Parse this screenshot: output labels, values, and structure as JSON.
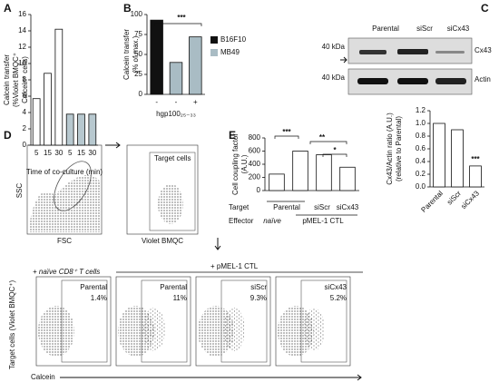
{
  "panel_labels": [
    "A",
    "B",
    "C",
    "D",
    "E"
  ],
  "chart_data": [
    {
      "type": "bar",
      "ylabel": [
        "Calcein transfer",
        "(%Violet BMQC⁺",
        "Calcein⁺ cells)"
      ],
      "xlabel": "Time of co-culture (min)",
      "categories": [
        "5",
        "15",
        "30",
        "5",
        "15",
        "30"
      ],
      "values": [
        5.7,
        8.8,
        14.2,
        3.8,
        3.8,
        3.8
      ],
      "colors": [
        "#ffffff",
        "#ffffff",
        "#ffffff",
        "#b7c8cf",
        "#b7c8cf",
        "#b7c8cf"
      ],
      "ylim": [
        0,
        16
      ],
      "yticks": [
        0,
        2,
        4,
        6,
        8,
        10,
        12,
        14,
        16
      ]
    },
    {
      "type": "bar",
      "ylabel": [
        "Calcein transfer",
        "(% of max.)"
      ],
      "xlabel": "hgp100₂₅₋₃₃",
      "categories": [
        "-",
        "-",
        "+"
      ],
      "series": [
        {
          "name": "B16F10",
          "color": "#111111",
          "values": [
            93,
            null,
            null
          ]
        },
        {
          "name": "MB49",
          "color": "#a9bcc4",
          "values": [
            null,
            40,
            72
          ]
        }
      ],
      "ylim": [
        0,
        100
      ],
      "yticks": [
        0,
        25,
        50,
        75,
        100
      ],
      "annotations": [
        "***"
      ]
    },
    {
      "type": "bar",
      "ylabel": [
        "Cx43/Actin ratio (A.U.)",
        "(relative to Parental)"
      ],
      "categories": [
        "Parental",
        "siScr",
        "siCx43"
      ],
      "values": [
        1.0,
        0.9,
        0.33
      ],
      "colors": [
        "#ffffff",
        "#ffffff",
        "#ffffff"
      ],
      "ylim": [
        0,
        1.2
      ],
      "yticks": [
        {
          "value": 0,
          "label": "0.0"
        },
        {
          "value": 0.2,
          "label": "0.2"
        },
        {
          "value": 0.4,
          "label": "0.4"
        },
        {
          "value": 0.6,
          "label": "0.6"
        },
        {
          "value": 0.8,
          "label": "0.8"
        },
        {
          "value": 1.0,
          "label": "1.0"
        },
        {
          "value": 1.2,
          "label": "1.2"
        }
      ],
      "annotations": [
        "***"
      ]
    },
    {
      "type": "bar",
      "ylabel": [
        "Cell coupling factor",
        "(A.U.)"
      ],
      "categories": [
        null,
        null,
        null,
        null
      ],
      "values": [
        250,
        600,
        545,
        355
      ],
      "colors": [
        "#ffffff",
        "#ffffff",
        "#ffffff",
        "#ffffff"
      ],
      "ylim": [
        0,
        800
      ],
      "yticks": [
        0,
        200,
        400,
        600,
        800
      ],
      "annotations": [
        "***",
        "**",
        "*"
      ]
    }
  ],
  "blot": {
    "lanes": [
      "Parental",
      "siScr",
      "siCx43"
    ],
    "markers": [
      "40 kDa",
      "40 kDa"
    ],
    "proteins": [
      "Cx43",
      "Actin"
    ]
  },
  "table_e": {
    "target": "Target",
    "effector": "Effector",
    "targets": [
      "Parental",
      "siScr",
      "siCx43"
    ],
    "effectors": [
      "naïve",
      "pMEL-1 CTL"
    ]
  },
  "flow": {
    "ssc": "SSC",
    "fsc": "FSC",
    "target_cells": "Target cells",
    "violet": "Violet BMQC",
    "naive": "+ naïve CD8⁺ T cells",
    "ctl": "+ pMEL-1 CTL",
    "ylabel": "Target cells (Violet BMQC⁺)",
    "xlabel": "Calcein",
    "plots": [
      {
        "name": "Parental",
        "pct": "1.4%"
      },
      {
        "name": "Parental",
        "pct": "11%"
      },
      {
        "name": "siScr",
        "pct": "9.3%"
      },
      {
        "name": "siCx43",
        "pct": "5.2%"
      }
    ]
  }
}
